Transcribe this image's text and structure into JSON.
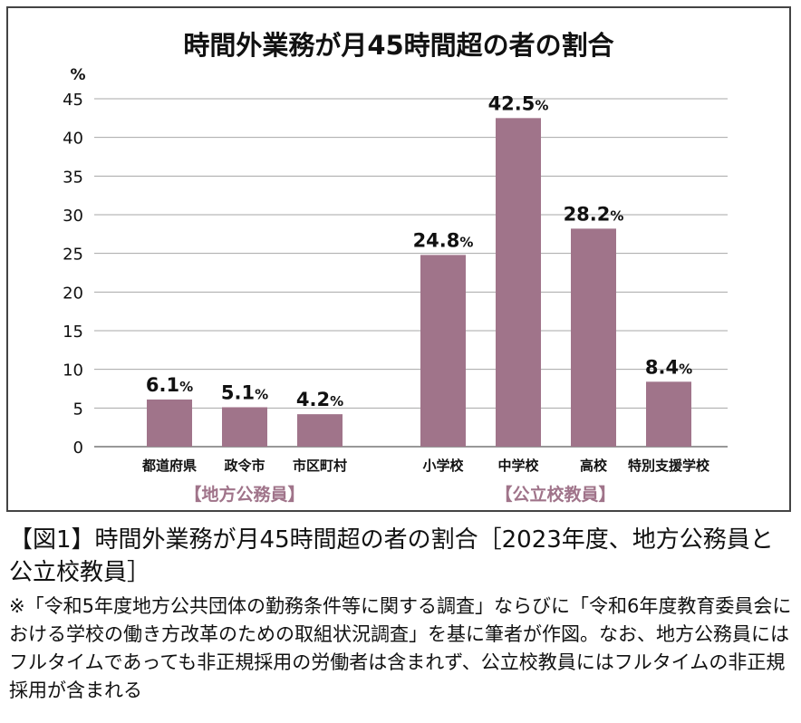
{
  "chart_data": {
    "type": "bar",
    "title": "時間外業務が月45時間超の者の割合",
    "yunit": "%",
    "ylim": [
      0,
      45
    ],
    "yticks": [
      0,
      5,
      10,
      15,
      20,
      25,
      30,
      35,
      40,
      45
    ],
    "grid": true,
    "value_suffix": "%",
    "groups": [
      {
        "name": "【地方公務員】",
        "categories": [
          "都道府県",
          "政令市",
          "市区町村"
        ],
        "values": [
          6.1,
          5.1,
          4.2
        ]
      },
      {
        "name": "【公立校教員】",
        "categories": [
          "小学校",
          "中学校",
          "高校",
          "特別支援学校"
        ],
        "values": [
          24.8,
          42.5,
          28.2,
          8.4
        ]
      }
    ],
    "colors": {
      "bar": "#a0748a",
      "group_label": "#a0748a",
      "grid": "#a7a7a7"
    }
  },
  "caption": {
    "title": "【図1】時間外業務が月45時間超の者の割合［2023年度、地方公務員と公立校教員］",
    "note": "※「令和5年度地方公共団体の勤務条件等に関する調査」ならびに「令和6年度教育委員会における学校の働き方改革のための取組状況調査」を基に筆者が作図。なお、地方公務員にはフルタイムであっても非正規採用の労働者は含まれず、公立校教員にはフルタイムの非正規採用が含まれる"
  }
}
